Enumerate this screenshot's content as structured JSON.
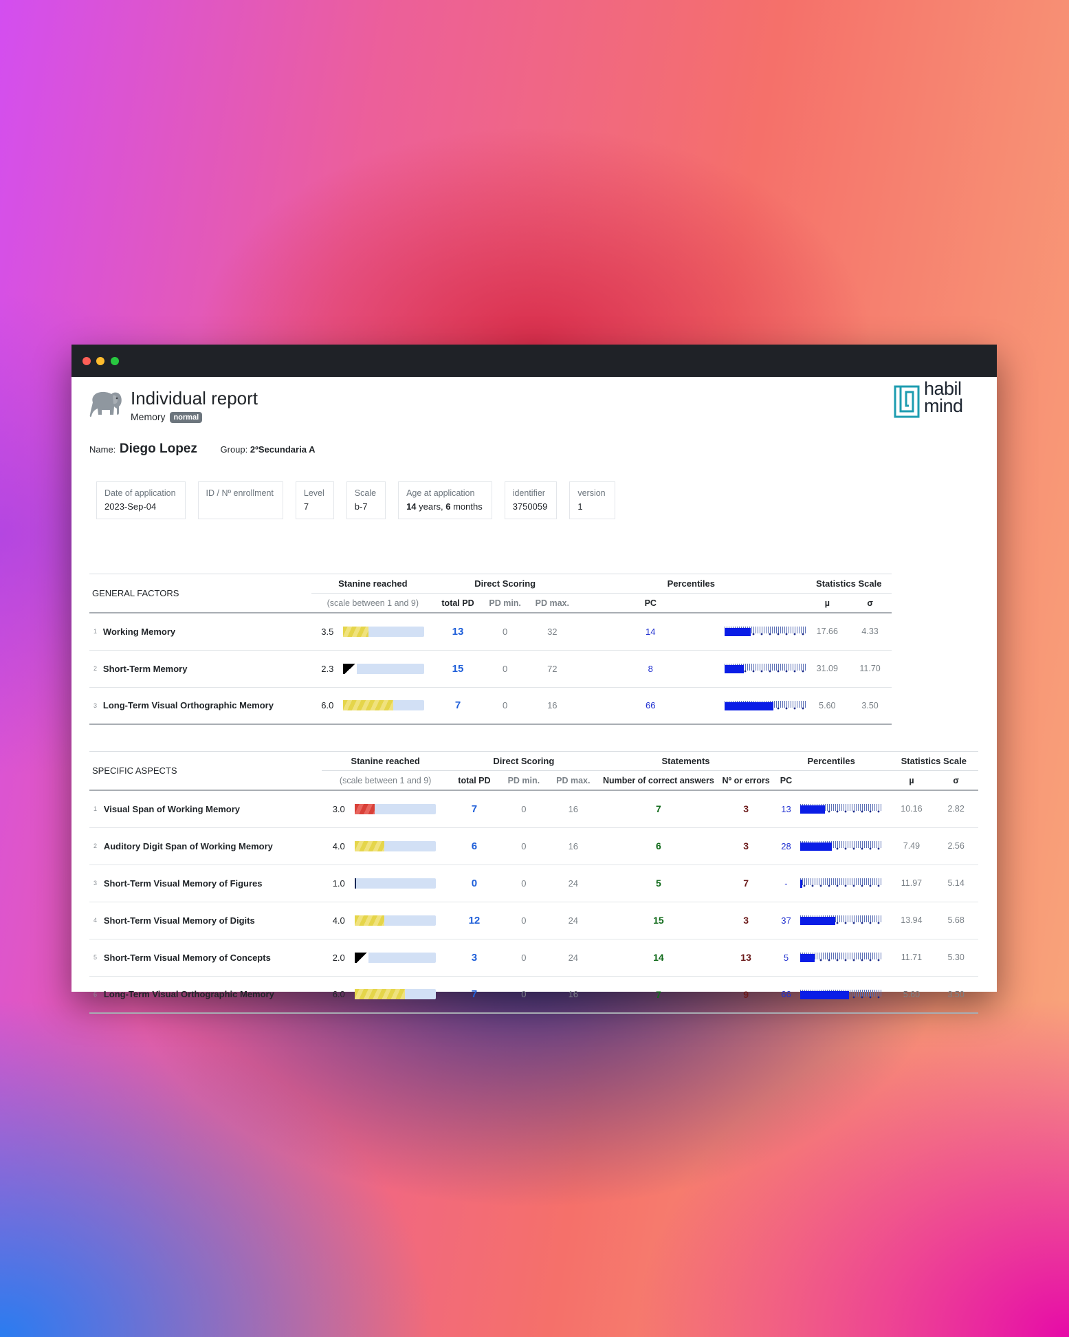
{
  "report": {
    "title": "Individual report",
    "subtitle": "Memory",
    "badge": "normal",
    "logo_text_line1": "habil",
    "logo_text_line2": "mind"
  },
  "student": {
    "name_label": "Name:",
    "name": "Diego Lopez",
    "group_label": "Group:",
    "group": "2ºSecundaria A"
  },
  "cards": [
    {
      "label": "Date of application",
      "value": "2023-Sep-04"
    },
    {
      "label": "ID / Nº enrollment",
      "value": ""
    },
    {
      "label": "Level",
      "value": "7"
    },
    {
      "label": "Scale",
      "value": "b-7"
    },
    {
      "label": "Age at application",
      "years": "14",
      "years_word": "years,",
      "months": "6",
      "months_word": "months"
    },
    {
      "label": "identifier",
      "value": "3750059"
    },
    {
      "label": "version",
      "value": "1"
    }
  ],
  "general": {
    "section": "GENERAL FACTORS",
    "h_stanine": "Stanine reached",
    "h_stanine_sub": "(scale between 1 and 9)",
    "h_direct": "Direct Scoring",
    "h_total": "total PD",
    "h_min": "PD min.",
    "h_max": "PD max.",
    "h_percentiles": "Percentiles",
    "h_pc": "PC",
    "h_stats": "Statistics Scale",
    "h_mu": "µ",
    "h_sigma": "σ",
    "rows": [
      {
        "n": "1",
        "name": "Working Memory",
        "stanine": "3.5",
        "stanine_fill": 0.31,
        "bar_style": "yellow",
        "total": "13",
        "min": "0",
        "max": "32",
        "pc": "14",
        "pc_fill": 0.32,
        "mu": "17.66",
        "sigma": "4.33"
      },
      {
        "n": "2",
        "name": "Short-Term Memory",
        "stanine": "2.3",
        "stanine_fill": 0.17,
        "bar_style": "flag",
        "total": "15",
        "min": "0",
        "max": "72",
        "pc": "8",
        "pc_fill": 0.23,
        "mu": "31.09",
        "sigma": "11.70"
      },
      {
        "n": "3",
        "name": "Long-Term Visual Orthographic Memory",
        "stanine": "6.0",
        "stanine_fill": 0.62,
        "bar_style": "yellow",
        "total": "7",
        "min": "0",
        "max": "16",
        "pc": "66",
        "pc_fill": 0.6,
        "mu": "5.60",
        "sigma": "3.50"
      }
    ]
  },
  "specific": {
    "section": "SPECIFIC ASPECTS",
    "h_stanine": "Stanine reached",
    "h_stanine_sub": "(scale between 1 and 9)",
    "h_direct": "Direct Scoring",
    "h_total": "total PD",
    "h_min": "PD min.",
    "h_max": "PD max.",
    "h_statements": "Statements",
    "h_correct": "Number of correct answers",
    "h_errors": "Nº or errors",
    "h_percentiles": "Percentiles",
    "h_pc": "PC",
    "h_stats": "Statistics Scale",
    "h_mu": "µ",
    "h_sigma": "σ",
    "rows": [
      {
        "n": "1",
        "name": "Visual Span of Working Memory",
        "stanine": "3.0",
        "stanine_fill": 0.25,
        "bar_style": "red",
        "total": "7",
        "min": "0",
        "max": "16",
        "correct": "7",
        "errors": "3",
        "pc": "13",
        "pc_fill": 0.3,
        "mu": "10.16",
        "sigma": "2.82"
      },
      {
        "n": "2",
        "name": "Auditory Digit Span of Working Memory",
        "stanine": "4.0",
        "stanine_fill": 0.37,
        "bar_style": "yellow",
        "total": "6",
        "min": "0",
        "max": "16",
        "correct": "6",
        "errors": "3",
        "pc": "28",
        "pc_fill": 0.39,
        "mu": "7.49",
        "sigma": "2.56"
      },
      {
        "n": "3",
        "name": "Short-Term Visual Memory of Figures",
        "stanine": "1.0",
        "stanine_fill": 0.02,
        "bar_style": "tiny",
        "total": "0",
        "min": "0",
        "max": "24",
        "correct": "5",
        "errors": "7",
        "pc": "-",
        "pc_fill": 0.02,
        "mu": "11.97",
        "sigma": "5.14"
      },
      {
        "n": "4",
        "name": "Short-Term Visual Memory of Digits",
        "stanine": "4.0",
        "stanine_fill": 0.37,
        "bar_style": "yellow",
        "total": "12",
        "min": "0",
        "max": "24",
        "correct": "15",
        "errors": "3",
        "pc": "37",
        "pc_fill": 0.43,
        "mu": "13.94",
        "sigma": "5.68"
      },
      {
        "n": "5",
        "name": "Short-Term Visual Memory of Concepts",
        "stanine": "2.0",
        "stanine_fill": 0.12,
        "bar_style": "flag",
        "total": "3",
        "min": "0",
        "max": "24",
        "correct": "14",
        "errors": "13",
        "pc": "5",
        "pc_fill": 0.18,
        "mu": "11.71",
        "sigma": "5.30"
      },
      {
        "n": "6",
        "name": "Long-Term Visual Orthographic Memory",
        "stanine": "6.0",
        "stanine_fill": 0.62,
        "bar_style": "yellow",
        "total": "7",
        "min": "0",
        "max": "16",
        "correct": "7",
        "errors": "9",
        "pc": "66",
        "pc_fill": 0.6,
        "mu": "5.60",
        "sigma": "3.50"
      }
    ]
  }
}
